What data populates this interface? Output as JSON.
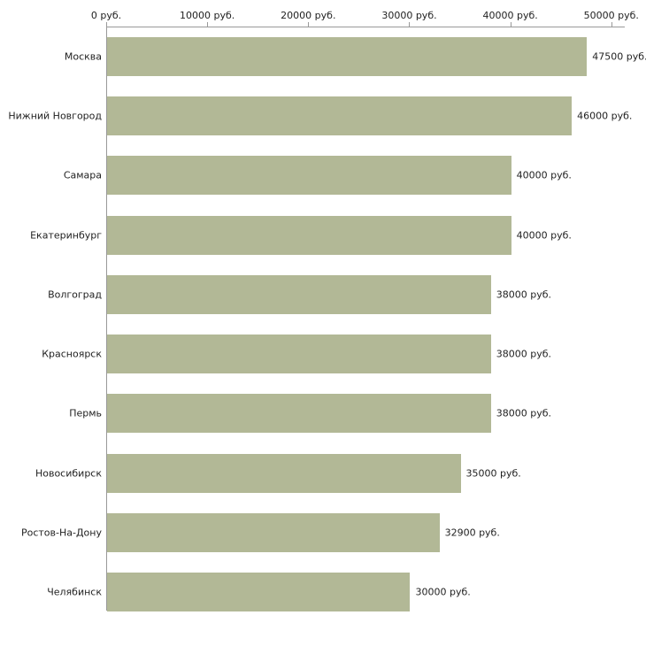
{
  "chart_data": {
    "type": "bar",
    "orientation": "horizontal",
    "title": "",
    "categories": [
      "Москва",
      "Нижний Новгород",
      "Самара",
      "Екатеринбург",
      "Волгоград",
      "Красноярск",
      "Пермь",
      "Новосибирск",
      "Ростов-На-Дону",
      "Челябинск"
    ],
    "values": [
      47500,
      46000,
      40000,
      40000,
      38000,
      38000,
      38000,
      35000,
      32900,
      30000
    ],
    "value_labels": [
      "47500 руб.",
      "46000 руб.",
      "40000 руб.",
      "40000 руб.",
      "38000 руб.",
      "38000 руб.",
      "38000 руб.",
      "35000 руб.",
      "32900 руб.",
      "30000 руб."
    ],
    "x_axis": {
      "position": "top",
      "range": [
        0,
        50000
      ],
      "ticks": [
        0,
        10000,
        20000,
        30000,
        40000,
        50000
      ],
      "tick_labels": [
        "0 руб.",
        "10000 руб.",
        "20000 руб.",
        "30000 руб.",
        "40000 руб.",
        "50000 руб."
      ]
    },
    "ylabel": "",
    "xlabel": "",
    "grid": false,
    "legend": false,
    "bar_color": "#b2b896",
    "axis_color": "#999999",
    "text_color": "#222222",
    "background_color": "#ffffff"
  }
}
